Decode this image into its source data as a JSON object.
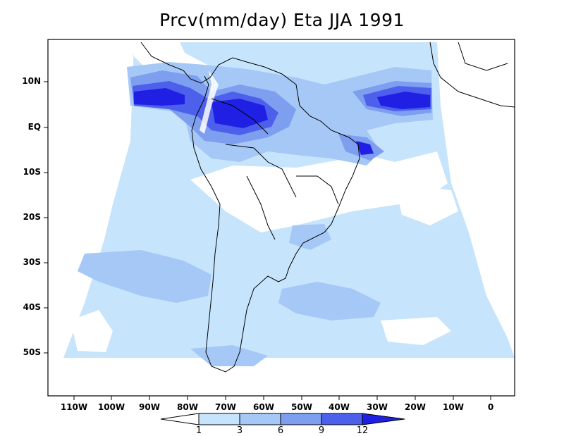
{
  "title": "Prcv(mm/day) Eta JJA 1991",
  "y_ticks": [
    "10N",
    "EQ",
    "10S",
    "20S",
    "30S",
    "40S",
    "50S"
  ],
  "x_ticks": [
    "110W",
    "100W",
    "90W",
    "80W",
    "70W",
    "60W",
    "50W",
    "40W",
    "30W",
    "20W",
    "10W",
    "0"
  ],
  "colorbar": {
    "levels": [
      "1",
      "3",
      "6",
      "9",
      "12"
    ],
    "colors": [
      "#ffffff",
      "#c6e4fb",
      "#a6c8f6",
      "#7e9ef0",
      "#4c60ec",
      "#2020e4"
    ]
  },
  "chart_data": {
    "type": "heatmap",
    "title": "Prcv(mm/day) Eta JJA 1991",
    "y_tick_labels": [
      "10N",
      "EQ",
      "10S",
      "20S",
      "30S",
      "40S",
      "50S"
    ],
    "x_tick_labels": [
      "110W",
      "100W",
      "90W",
      "80W",
      "70W",
      "60W",
      "50W",
      "40W",
      "30W",
      "20W",
      "10W",
      "0"
    ],
    "contour_levels": [
      1,
      3,
      6,
      9,
      12
    ],
    "units": "mm/day"
  }
}
